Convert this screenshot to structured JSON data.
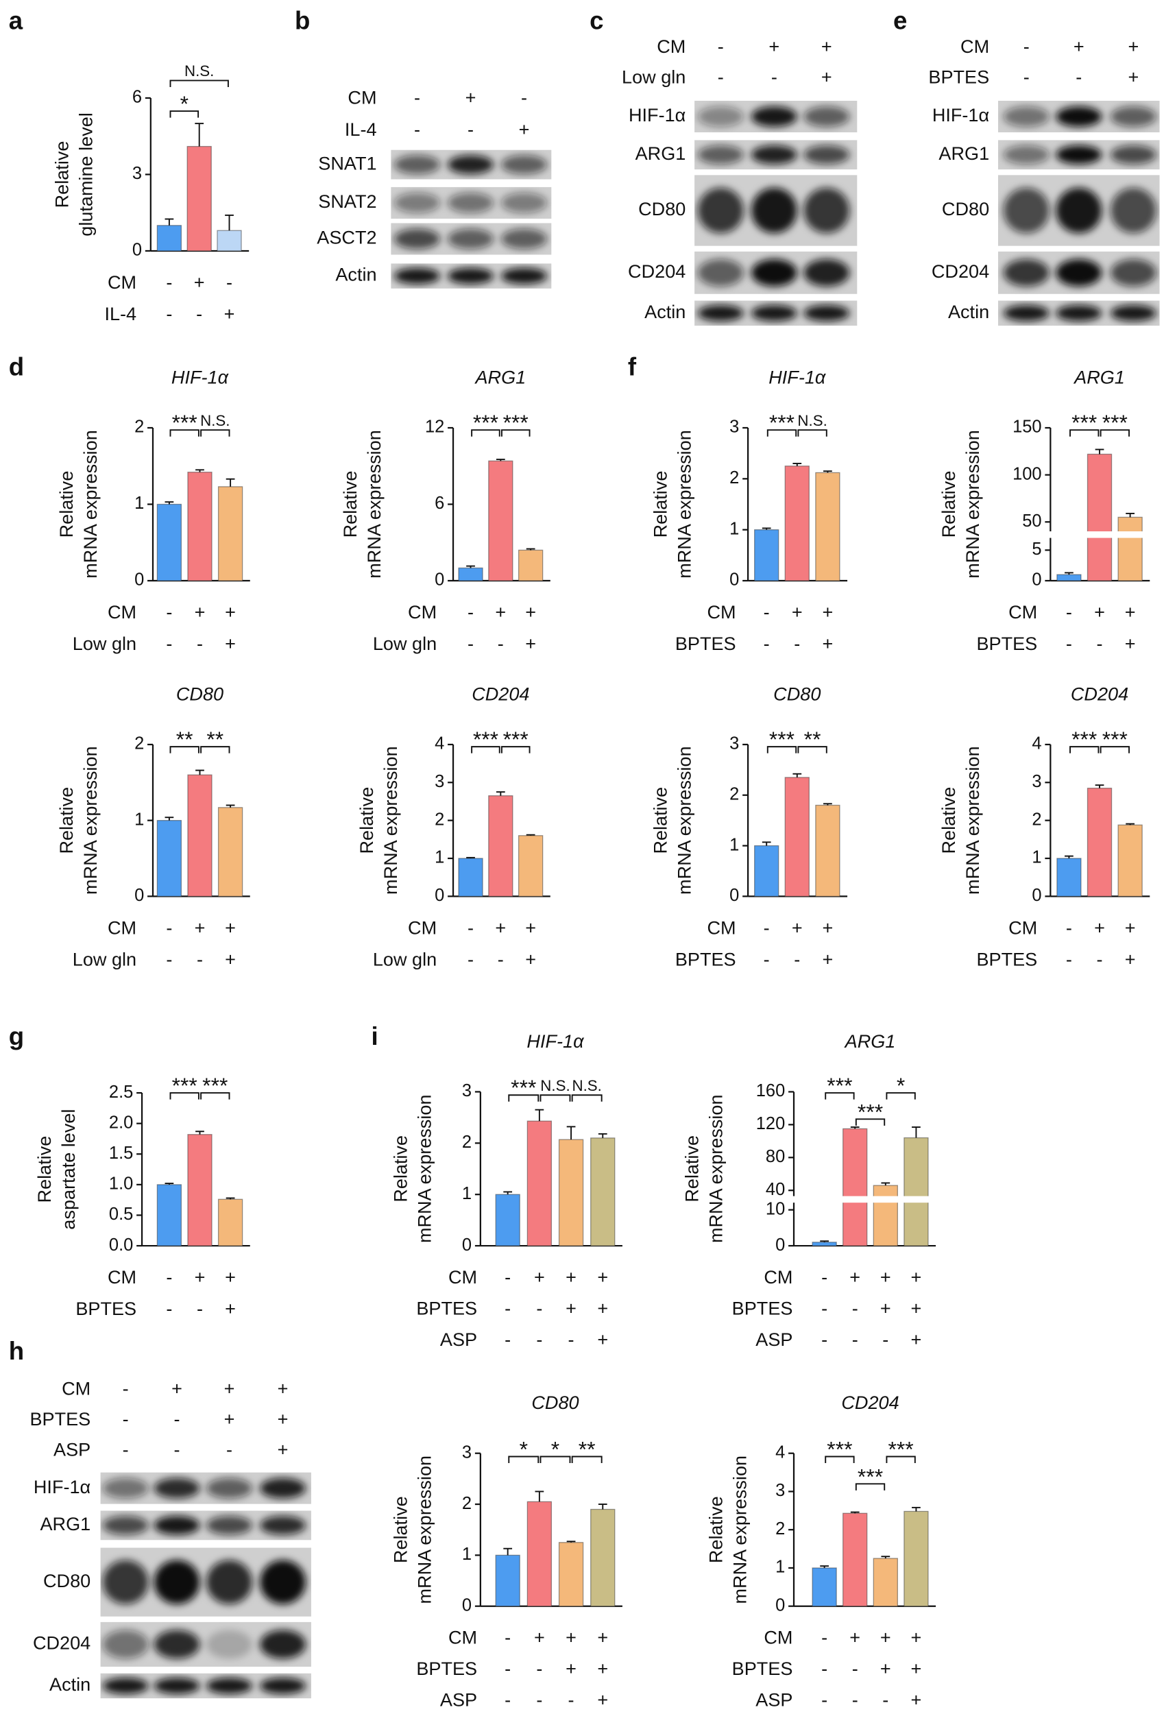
{
  "chart_data": [
    {
      "type": "bar",
      "panel": "a",
      "ylabel": [
        "Relative",
        "glutamine level"
      ],
      "ylim": [
        0,
        6
      ],
      "yticks": [
        0,
        3,
        6
      ],
      "values": [
        1.0,
        4.1,
        0.8
      ],
      "errors": [
        0.25,
        0.9,
        0.6
      ],
      "colors": [
        "#4d9cf0",
        "#f47b7f",
        "#bcd7f5"
      ],
      "significance": [
        {
          "from": 0,
          "to": 1,
          "label": "*"
        },
        {
          "from": 0,
          "to": 2,
          "label": "N.S."
        }
      ],
      "conditions": [
        {
          "label": "CM",
          "signs": [
            "-",
            "+",
            "-"
          ]
        },
        {
          "label": "IL-4",
          "signs": [
            "-",
            "-",
            "+"
          ]
        }
      ]
    },
    {
      "type": "blot",
      "panel": "b",
      "conditions": [
        {
          "label": "CM",
          "signs": [
            "-",
            "+",
            "-"
          ]
        },
        {
          "label": "IL-4",
          "signs": [
            "-",
            "-",
            "+"
          ]
        }
      ],
      "bands": [
        "SNAT1",
        "SNAT2",
        "ASCT2",
        "Actin"
      ]
    },
    {
      "type": "blot",
      "panel": "c",
      "conditions": [
        {
          "label": "CM",
          "signs": [
            "-",
            "+",
            "+"
          ]
        },
        {
          "label": "Low gln",
          "signs": [
            "-",
            "-",
            "+"
          ]
        }
      ],
      "bands": [
        "HIF-1α",
        "ARG1",
        "CD80",
        "CD204",
        "Actin"
      ]
    },
    {
      "type": "blot",
      "panel": "e",
      "conditions": [
        {
          "label": "CM",
          "signs": [
            "-",
            "+",
            "+"
          ]
        },
        {
          "label": "BPTES",
          "signs": [
            "-",
            "-",
            "+"
          ]
        }
      ],
      "bands": [
        "HIF-1α",
        "ARG1",
        "CD80",
        "CD204",
        "Actin"
      ]
    },
    {
      "type": "bar",
      "panel": "d",
      "title": "HIF-1α",
      "ylabel": [
        "Relative",
        "mRNA expression"
      ],
      "ylim": [
        0,
        2
      ],
      "yticks": [
        0,
        1,
        2
      ],
      "values": [
        1.0,
        1.42,
        1.23
      ],
      "errors": [
        0.03,
        0.03,
        0.1
      ],
      "colors": [
        "#4d9cf0",
        "#f47b7f",
        "#f4b87a"
      ],
      "significance": [
        {
          "from": 0,
          "to": 1,
          "label": "***"
        },
        {
          "from": 1,
          "to": 2,
          "label": "N.S."
        }
      ],
      "conditions": [
        {
          "label": "CM",
          "signs": [
            "-",
            "+",
            "+"
          ]
        },
        {
          "label": "Low gln",
          "signs": [
            "-",
            "-",
            "+"
          ]
        }
      ]
    },
    {
      "type": "bar",
      "title": "ARG1",
      "ylabel": [
        "Relative",
        "mRNA expression"
      ],
      "ylim": [
        0,
        12
      ],
      "yticks": [
        0,
        6,
        12
      ],
      "values": [
        1.0,
        9.4,
        2.4
      ],
      "errors": [
        0.15,
        0.12,
        0.1
      ],
      "colors": [
        "#4d9cf0",
        "#f47b7f",
        "#f4b87a"
      ],
      "significance": [
        {
          "from": 0,
          "to": 1,
          "label": "***"
        },
        {
          "from": 1,
          "to": 2,
          "label": "***"
        }
      ],
      "conditions": [
        {
          "label": "CM",
          "signs": [
            "-",
            "+",
            "+"
          ]
        },
        {
          "label": "Low gln",
          "signs": [
            "-",
            "-",
            "+"
          ]
        }
      ]
    },
    {
      "type": "bar",
      "title": "CD80",
      "ylabel": [
        "Relative",
        "mRNA expression"
      ],
      "ylim": [
        0,
        2
      ],
      "yticks": [
        0,
        1,
        2
      ],
      "values": [
        1.0,
        1.6,
        1.17
      ],
      "errors": [
        0.04,
        0.06,
        0.03
      ],
      "colors": [
        "#4d9cf0",
        "#f47b7f",
        "#f4b87a"
      ],
      "significance": [
        {
          "from": 0,
          "to": 1,
          "label": "**"
        },
        {
          "from": 1,
          "to": 2,
          "label": "**"
        }
      ],
      "conditions": [
        {
          "label": "CM",
          "signs": [
            "-",
            "+",
            "+"
          ]
        },
        {
          "label": "Low gln",
          "signs": [
            "-",
            "-",
            "+"
          ]
        }
      ]
    },
    {
      "type": "bar",
      "title": "CD204",
      "ylabel": [
        "Relative",
        "mRNA expression"
      ],
      "ylim": [
        0,
        4
      ],
      "yticks": [
        0,
        1,
        2,
        3,
        4
      ],
      "values": [
        1.0,
        2.65,
        1.6
      ],
      "errors": [
        0.02,
        0.1,
        0.02
      ],
      "colors": [
        "#4d9cf0",
        "#f47b7f",
        "#f4b87a"
      ],
      "significance": [
        {
          "from": 0,
          "to": 1,
          "label": "***"
        },
        {
          "from": 1,
          "to": 2,
          "label": "***"
        }
      ],
      "conditions": [
        {
          "label": "CM",
          "signs": [
            "-",
            "+",
            "+"
          ]
        },
        {
          "label": "Low gln",
          "signs": [
            "-",
            "-",
            "+"
          ]
        }
      ]
    },
    {
      "type": "bar",
      "panel": "f",
      "title": "HIF-1α",
      "ylabel": [
        "Relative",
        "mRNA expression"
      ],
      "ylim": [
        0,
        3
      ],
      "yticks": [
        0,
        1,
        2,
        3
      ],
      "values": [
        1.0,
        2.25,
        2.12
      ],
      "errors": [
        0.03,
        0.05,
        0.03
      ],
      "colors": [
        "#4d9cf0",
        "#f47b7f",
        "#f4b87a"
      ],
      "significance": [
        {
          "from": 0,
          "to": 1,
          "label": "***"
        },
        {
          "from": 1,
          "to": 2,
          "label": "N.S."
        }
      ],
      "conditions": [
        {
          "label": "CM",
          "signs": [
            "-",
            "+",
            "+"
          ]
        },
        {
          "label": "BPTES",
          "signs": [
            "-",
            "-",
            "+"
          ]
        }
      ]
    },
    {
      "type": "bar",
      "title": "ARG1",
      "ylabel": [
        "Relative",
        "mRNA expression"
      ],
      "segments": [
        {
          "ylim": [
            0,
            7
          ],
          "yticks": [
            0,
            5
          ]
        },
        {
          "ylim": [
            40,
            150
          ],
          "yticks": [
            50,
            100,
            150
          ]
        }
      ],
      "values": [
        1.0,
        122,
        55
      ],
      "errors": [
        0.3,
        5,
        4
      ],
      "colors": [
        "#4d9cf0",
        "#f47b7f",
        "#f4b87a"
      ],
      "significance": [
        {
          "from": 0,
          "to": 1,
          "label": "***"
        },
        {
          "from": 1,
          "to": 2,
          "label": "***"
        }
      ],
      "conditions": [
        {
          "label": "CM",
          "signs": [
            "-",
            "+",
            "+"
          ]
        },
        {
          "label": "BPTES",
          "signs": [
            "-",
            "-",
            "+"
          ]
        }
      ]
    },
    {
      "type": "bar",
      "title": "CD80",
      "ylabel": [
        "Relative",
        "mRNA expression"
      ],
      "ylim": [
        0,
        3
      ],
      "yticks": [
        0,
        1,
        2,
        3
      ],
      "values": [
        1.0,
        2.35,
        1.8
      ],
      "errors": [
        0.07,
        0.07,
        0.03
      ],
      "colors": [
        "#4d9cf0",
        "#f47b7f",
        "#f4b87a"
      ],
      "significance": [
        {
          "from": 0,
          "to": 1,
          "label": "***"
        },
        {
          "from": 1,
          "to": 2,
          "label": "**"
        }
      ],
      "conditions": [
        {
          "label": "CM",
          "signs": [
            "-",
            "+",
            "+"
          ]
        },
        {
          "label": "BPTES",
          "signs": [
            "-",
            "-",
            "+"
          ]
        }
      ]
    },
    {
      "type": "bar",
      "title": "CD204",
      "ylabel": [
        "Relative",
        "mRNA expression"
      ],
      "ylim": [
        0,
        4
      ],
      "yticks": [
        0,
        1,
        2,
        3,
        4
      ],
      "values": [
        1.0,
        2.85,
        1.88
      ],
      "errors": [
        0.06,
        0.08,
        0.03
      ],
      "colors": [
        "#4d9cf0",
        "#f47b7f",
        "#f4b87a"
      ],
      "significance": [
        {
          "from": 0,
          "to": 1,
          "label": "***"
        },
        {
          "from": 1,
          "to": 2,
          "label": "***"
        }
      ],
      "conditions": [
        {
          "label": "CM",
          "signs": [
            "-",
            "+",
            "+"
          ]
        },
        {
          "label": "BPTES",
          "signs": [
            "-",
            "-",
            "+"
          ]
        }
      ]
    },
    {
      "type": "bar",
      "panel": "g",
      "ylabel": [
        "Relative",
        "aspartate level"
      ],
      "ylim": [
        0,
        2.5
      ],
      "yticks": [
        {
          "value": 0,
          "label": "0.0"
        },
        0.5,
        {
          "value": 1,
          "label": "1.0"
        },
        1.5,
        {
          "value": 2,
          "label": "2.0"
        },
        2.5
      ],
      "values": [
        1.0,
        1.82,
        0.76
      ],
      "errors": [
        0.02,
        0.05,
        0.02
      ],
      "colors": [
        "#4d9cf0",
        "#f47b7f",
        "#f4b87a"
      ],
      "significance": [
        {
          "from": 0,
          "to": 1,
          "label": "***"
        },
        {
          "from": 1,
          "to": 2,
          "label": "***"
        }
      ],
      "conditions": [
        {
          "label": "CM",
          "signs": [
            "-",
            "+",
            "+"
          ]
        },
        {
          "label": "BPTES",
          "signs": [
            "-",
            "-",
            "+"
          ]
        }
      ]
    },
    {
      "type": "blot",
      "panel": "h",
      "conditions": [
        {
          "label": "CM",
          "signs": [
            "-",
            "+",
            "+",
            "+"
          ]
        },
        {
          "label": "BPTES",
          "signs": [
            "-",
            "-",
            "+",
            "+"
          ]
        },
        {
          "label": "ASP",
          "signs": [
            "-",
            "-",
            "-",
            "+"
          ]
        }
      ],
      "bands": [
        "HIF-1α",
        "ARG1",
        "CD80",
        "CD204",
        "Actin"
      ]
    },
    {
      "type": "bar",
      "panel": "i",
      "title": "HIF-1α",
      "ylabel": [
        "Relative",
        "mRNA expression"
      ],
      "ylim": [
        0,
        3
      ],
      "yticks": [
        0,
        1,
        2,
        3
      ],
      "values": [
        1.0,
        2.43,
        2.07,
        2.1
      ],
      "errors": [
        0.05,
        0.22,
        0.25,
        0.08
      ],
      "colors": [
        "#4d9cf0",
        "#f47b7f",
        "#f4b87a",
        "#c9bd86"
      ],
      "significance": [
        {
          "from": 0,
          "to": 1,
          "label": "***"
        },
        {
          "from": 1,
          "to": 2,
          "label": "N.S."
        },
        {
          "from": 2,
          "to": 3,
          "label": "N.S."
        }
      ],
      "conditions": [
        {
          "label": "CM",
          "signs": [
            "-",
            "+",
            "+",
            "+"
          ]
        },
        {
          "label": "BPTES",
          "signs": [
            "-",
            "-",
            "+",
            "+"
          ]
        },
        {
          "label": "ASP",
          "signs": [
            "-",
            "-",
            "-",
            "+"
          ]
        }
      ]
    },
    {
      "type": "bar",
      "title": "ARG1",
      "ylabel": [
        "Relative",
        "mRNA expression"
      ],
      "segments": [
        {
          "ylim": [
            0,
            12
          ],
          "yticks": [
            0,
            10
          ]
        },
        {
          "ylim": [
            33,
            160
          ],
          "yticks": [
            40,
            80,
            120,
            160
          ]
        }
      ],
      "values": [
        1.0,
        115,
        46,
        104
      ],
      "errors": [
        0.3,
        2,
        3,
        13
      ],
      "colors": [
        "#4d9cf0",
        "#f47b7f",
        "#f4b87a",
        "#c9bd86"
      ],
      "significance": [
        {
          "from": 0,
          "to": 1,
          "label": "***"
        },
        {
          "from": 1,
          "to": 2,
          "label": "***"
        },
        {
          "from": 2,
          "to": 3,
          "label": "*"
        }
      ],
      "conditions": [
        {
          "label": "CM",
          "signs": [
            "-",
            "+",
            "+",
            "+"
          ]
        },
        {
          "label": "BPTES",
          "signs": [
            "-",
            "-",
            "+",
            "+"
          ]
        },
        {
          "label": "ASP",
          "signs": [
            "-",
            "-",
            "-",
            "+"
          ]
        }
      ]
    },
    {
      "type": "bar",
      "title": "CD80",
      "ylabel": [
        "Relative",
        "mRNA expression"
      ],
      "ylim": [
        0,
        3
      ],
      "yticks": [
        0,
        1,
        2,
        3
      ],
      "values": [
        1.0,
        2.05,
        1.25,
        1.9
      ],
      "errors": [
        0.13,
        0.2,
        0.02,
        0.1
      ],
      "colors": [
        "#4d9cf0",
        "#f47b7f",
        "#f4b87a",
        "#c9bd86"
      ],
      "significance": [
        {
          "from": 0,
          "to": 1,
          "label": "*"
        },
        {
          "from": 1,
          "to": 2,
          "label": "*"
        },
        {
          "from": 2,
          "to": 3,
          "label": "**"
        }
      ],
      "conditions": [
        {
          "label": "CM",
          "signs": [
            "-",
            "+",
            "+",
            "+"
          ]
        },
        {
          "label": "BPTES",
          "signs": [
            "-",
            "-",
            "+",
            "+"
          ]
        },
        {
          "label": "ASP",
          "signs": [
            "-",
            "-",
            "-",
            "+"
          ]
        }
      ]
    },
    {
      "type": "bar",
      "title": "CD204",
      "ylabel": [
        "Relative",
        "mRNA expression"
      ],
      "ylim": [
        0,
        4
      ],
      "yticks": [
        0,
        1,
        2,
        3,
        4
      ],
      "values": [
        1.0,
        2.43,
        1.25,
        2.48
      ],
      "errors": [
        0.05,
        0.03,
        0.05,
        0.1
      ],
      "colors": [
        "#4d9cf0",
        "#f47b7f",
        "#f4b87a",
        "#c9bd86"
      ],
      "significance": [
        {
          "from": 0,
          "to": 1,
          "label": "***"
        },
        {
          "from": 1,
          "to": 2,
          "label": "***"
        },
        {
          "from": 2,
          "to": 3,
          "label": "***"
        }
      ],
      "conditions": [
        {
          "label": "CM",
          "signs": [
            "-",
            "+",
            "+",
            "+"
          ]
        },
        {
          "label": "BPTES",
          "signs": [
            "-",
            "-",
            "+",
            "+"
          ]
        },
        {
          "label": "ASP",
          "signs": [
            "-",
            "-",
            "-",
            "+"
          ]
        }
      ]
    }
  ]
}
